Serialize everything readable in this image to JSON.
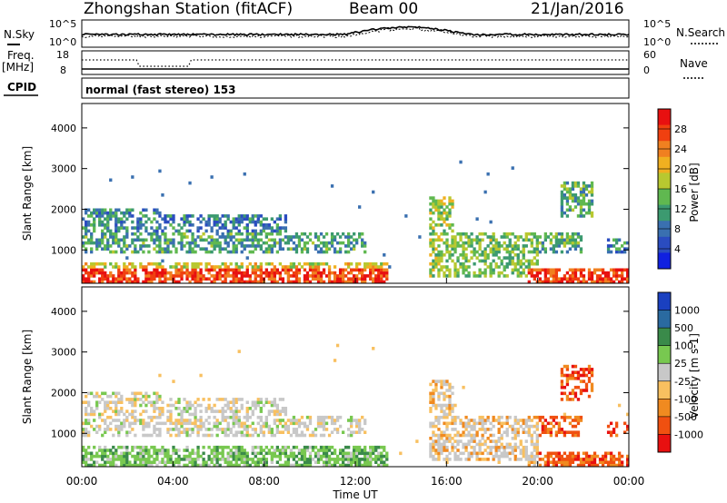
{
  "header": {
    "station": "Zhongshan Station (fitACF)",
    "beam": "Beam 00",
    "date": "21/Jan/2016"
  },
  "top_panels": {
    "nsky_label": "N.Sky",
    "nsearch_label": "N.Search",
    "count_ticks": [
      "10^5",
      "10^0"
    ],
    "freq_label": "Freq.",
    "freq_unit": "[MHz]",
    "freq_ticks": [
      "18",
      "8"
    ],
    "nave_label": "Nave",
    "nave_ticks": [
      "60",
      "0"
    ],
    "cpid_label": "CPID",
    "cpid_text": "normal (fast stereo) 153"
  },
  "colors": {
    "power": [
      "#1020e0",
      "#2a4cc0",
      "#3a70b0",
      "#3c9a70",
      "#60b850",
      "#b8c830",
      "#f0b020",
      "#f08020",
      "#f04010",
      "#e81010"
    ],
    "velocity": [
      "#e81010",
      "#f05010",
      "#f08a20",
      "#f8c060",
      "#c8c8c8",
      "#78c850",
      "#3a8a4a",
      "#2a6aa0",
      "#1a40c0"
    ]
  },
  "chart_data": [
    {
      "type": "heatmap",
      "name": "power",
      "ylabel": "Slant Range [km]",
      "yticks": [
        1000,
        2000,
        3000,
        4000
      ],
      "ylim": [
        180,
        4600
      ],
      "colorbar_label": "Power [dB]",
      "colorbar_ticks": [
        "4",
        "8",
        "12",
        "16",
        "20",
        "24",
        "28"
      ],
      "colorbar_range": [
        0,
        32
      ]
    },
    {
      "type": "heatmap",
      "name": "velocity",
      "ylabel": "Slant Range [km]",
      "yticks": [
        1000,
        2000,
        3000,
        4000
      ],
      "ylim": [
        180,
        4600
      ],
      "xlabel": "Time UT",
      "xticks": [
        "00:00",
        "04:00",
        "08:00",
        "12:00",
        "16:00",
        "20:00",
        "00:00"
      ],
      "xlim_hours": [
        0,
        24
      ],
      "colorbar_label": "Velocity [m s-1]",
      "colorbar_ticks": [
        "-1000",
        "-500",
        "-100",
        "-25",
        "25",
        "100",
        "500",
        "1000"
      ]
    }
  ]
}
